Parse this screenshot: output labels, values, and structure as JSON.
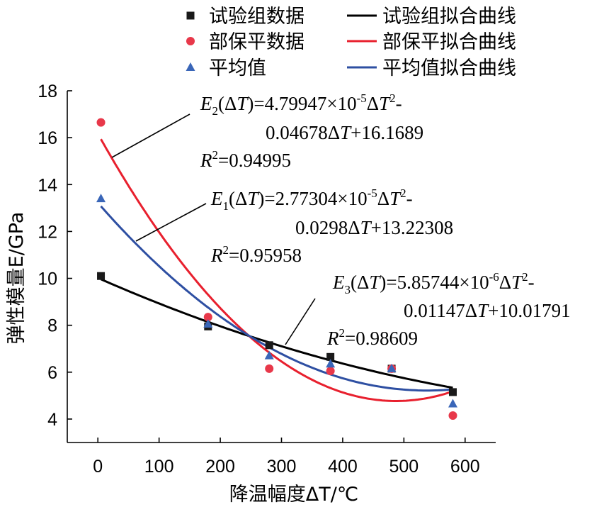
{
  "chart_data": {
    "type": "scatter",
    "xlabel": "降温幅度ΔT/℃",
    "ylabel": "弹性模量E/GPa",
    "xlim": [
      -50,
      650
    ],
    "ylim": [
      3,
      18
    ],
    "xticks": [
      0,
      100,
      200,
      300,
      400,
      500,
      600
    ],
    "yticks": [
      4,
      6,
      8,
      10,
      12,
      14,
      16,
      18
    ],
    "x": [
      5,
      180,
      280,
      380,
      480,
      580
    ],
    "grid": false,
    "legend_position": "top",
    "series": [
      {
        "name": "试验组数据",
        "kind": "points",
        "marker": "square",
        "color": "#1a1a1a",
        "values": [
          10.1,
          7.95,
          7.15,
          6.65,
          6.15,
          5.15
        ]
      },
      {
        "name": "部保平数据",
        "kind": "points",
        "marker": "circle",
        "color": "#e8384a",
        "values": [
          16.65,
          8.35,
          6.15,
          6.05,
          6.15,
          4.15
        ]
      },
      {
        "name": "平均值",
        "kind": "points",
        "marker": "triangle",
        "color": "#3a66b8",
        "values": [
          13.4,
          8.05,
          6.7,
          6.35,
          6.15,
          4.65
        ]
      },
      {
        "name": "试验组拟合曲线",
        "kind": "curve",
        "color": "#000000",
        "coefficients": {
          "a": 5.85744e-06,
          "b": -0.01147,
          "c": 10.01791
        },
        "domain": [
          5,
          580
        ]
      },
      {
        "name": "部保平拟合曲线",
        "kind": "curve",
        "color": "#e8202e",
        "coefficients": {
          "a": 4.79947e-05,
          "b": -0.04678,
          "c": 16.1689
        },
        "domain": [
          5,
          580
        ]
      },
      {
        "name": "平均值拟合曲线",
        "kind": "curve",
        "color": "#2e4fa2",
        "coefficients": {
          "a": 2.77304e-05,
          "b": -0.0298,
          "c": 13.22308
        },
        "domain": [
          5,
          580
        ]
      }
    ],
    "annotations": [
      {
        "line1_pre": "E",
        "line1_sub": "2",
        "line1_mid": "(Δ",
        "line1_T": "T",
        "line1_coef": ")=4.79947×10",
        "line1_exp": "-5",
        "line1_d": "Δ",
        "line1_T2": "T",
        "line1_sq": "2",
        "line1_end": "-",
        "line2_pre": "0.04678Δ",
        "line2_T": "T",
        "line2_end": "+16.1689",
        "r2_R": "R",
        "r2_sq": "2",
        "r2_val": "=0.94995"
      },
      {
        "line1_pre": "E",
        "line1_sub": "1",
        "line1_mid": "(Δ",
        "line1_T": "T",
        "line1_coef": ")=2.77304×10",
        "line1_exp": "-5",
        "line1_d": "Δ",
        "line1_T2": "T",
        "line1_sq": "2",
        "line1_end": "-",
        "line2_pre": "0.0298Δ",
        "line2_T": "T",
        "line2_end": "+13.22308",
        "r2_R": "R",
        "r2_sq": "2",
        "r2_val": "=0.95958"
      },
      {
        "line1_pre": "E",
        "line1_sub": "3",
        "line1_mid": "(Δ",
        "line1_T": "T",
        "line1_coef": ")=5.85744×10",
        "line1_exp": "-6",
        "line1_d": "Δ",
        "line1_T2": "T",
        "line1_sq": "2",
        "line1_end": "-",
        "line2_pre": "0.01147Δ",
        "line2_T": "T",
        "line2_end": "+10.01791",
        "r2_R": "R",
        "r2_sq": "2",
        "r2_val": "=0.98609"
      }
    ]
  }
}
